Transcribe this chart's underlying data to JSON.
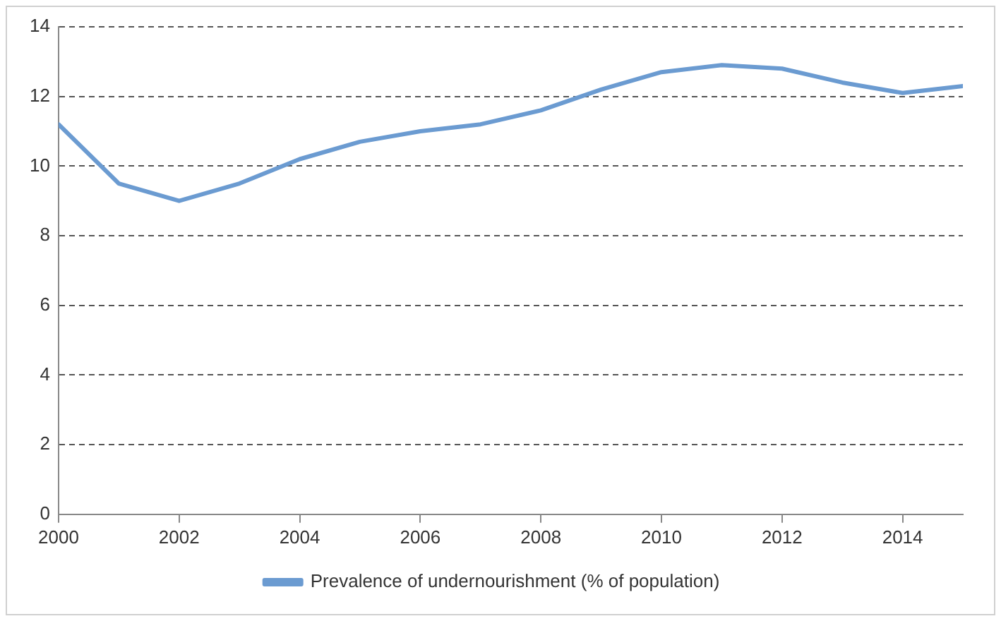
{
  "chart_data": {
    "type": "line",
    "x": [
      2000,
      2001,
      2002,
      2003,
      2004,
      2005,
      2006,
      2007,
      2008,
      2009,
      2010,
      2011,
      2012,
      2013,
      2014,
      2015
    ],
    "series": [
      {
        "name": "Prevalence of undernourishment (% of population)",
        "color": "#6b9bd1",
        "values": [
          11.2,
          9.5,
          9.0,
          9.5,
          10.2,
          10.7,
          11.0,
          11.2,
          11.6,
          12.2,
          12.7,
          12.9,
          12.8,
          12.4,
          12.1,
          12.3
        ]
      }
    ],
    "xlim": [
      2000,
      2015
    ],
    "xticks": [
      2000,
      2002,
      2004,
      2006,
      2008,
      2010,
      2012,
      2014
    ],
    "ylim": [
      0,
      14
    ],
    "yticks": [
      0,
      2,
      4,
      6,
      8,
      10,
      12,
      14
    ],
    "grid": "y",
    "legend": "bottom",
    "marker": "none",
    "line_style": "solid"
  }
}
